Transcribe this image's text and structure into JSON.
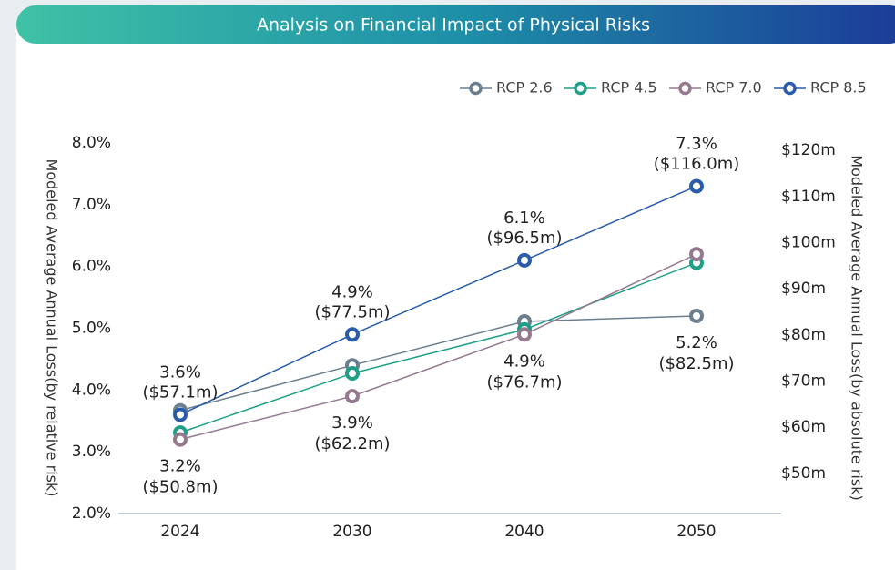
{
  "chart_data": {
    "type": "line",
    "title": "Analysis on Financial Impact of Physical Risks",
    "ylabel": "Modeled Average Annual Loss(by relative risk)",
    "y2label": "Modeled Average Annual Loss(by absolute risk)",
    "categories": [
      "2024",
      "2030",
      "2040",
      "2050"
    ],
    "ylim": [
      2,
      8
    ],
    "yticks": [
      {
        "value": 2,
        "label": "2.0%"
      },
      {
        "value": 3,
        "label": "3.0%"
      },
      {
        "value": 4,
        "label": "4.0%"
      },
      {
        "value": 5,
        "label": "5.0%"
      },
      {
        "value": 6,
        "label": "6.0%"
      },
      {
        "value": 7,
        "label": "7.0%"
      },
      {
        "value": 8,
        "label": "8.0%"
      }
    ],
    "y2lim": [
      41.3,
      121.6
    ],
    "y2ticks": [
      {
        "value": 50,
        "label": "$50m"
      },
      {
        "value": 60,
        "label": "$60m"
      },
      {
        "value": 70,
        "label": "$70m"
      },
      {
        "value": 80,
        "label": "$80m"
      },
      {
        "value": 90,
        "label": "$90m"
      },
      {
        "value": 100,
        "label": "$100m"
      },
      {
        "value": 110,
        "label": "$110m"
      },
      {
        "value": 120,
        "label": "$120m"
      }
    ],
    "legend": "top-right",
    "series": [
      {
        "name": "RCP 2.6",
        "color": "#6c7f8e",
        "values": [
          3.67,
          4.4,
          5.11,
          5.2
        ],
        "value_labels": [
          null,
          null,
          null,
          "5.2%"
        ],
        "abs_labels": [
          null,
          null,
          null,
          "($82.5m)"
        ],
        "label_position": "below"
      },
      {
        "name": "RCP 4.5",
        "color": "#1fa086",
        "values": [
          3.31,
          4.27,
          4.98,
          6.06
        ]
      },
      {
        "name": "RCP 7.0",
        "color": "#94798f",
        "values": [
          3.2,
          3.9,
          4.9,
          6.2
        ],
        "value_labels": [
          "3.2%",
          "3.9%",
          "4.9%",
          null
        ],
        "abs_labels": [
          "($50.8m)",
          "($62.2m)",
          "($76.7m)",
          null
        ],
        "label_position": "below"
      },
      {
        "name": "RCP 8.5",
        "color": "#2a5cab",
        "values": [
          3.6,
          4.9,
          6.1,
          7.3
        ],
        "value_labels": [
          "3.6%",
          "4.9%",
          "6.1%",
          "7.3%"
        ],
        "abs_labels": [
          "($57.1m)",
          "($77.5m)",
          "($96.5m)",
          "($116.0m)"
        ],
        "label_position": "above"
      }
    ]
  }
}
